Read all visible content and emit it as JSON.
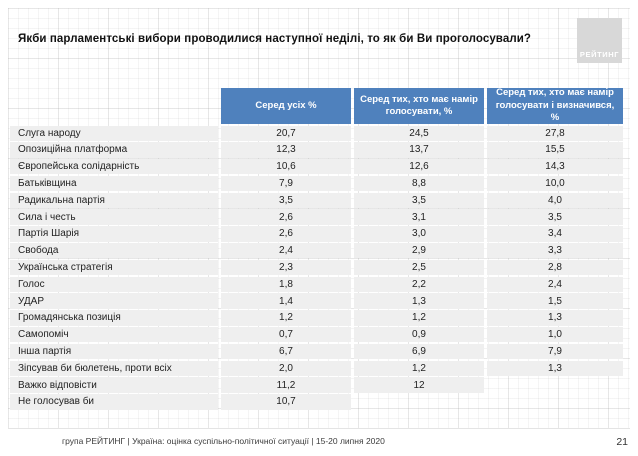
{
  "slide": {
    "logo_text": "РЕЙТИНГ",
    "footer": "група РЕЙТИНГ |  Україна: оцінка суспільно-політичної  ситуації  | 15-20 липня  2020",
    "page_number": "21"
  },
  "colors": {
    "header_blue": "#4f81bd",
    "row_gray": "#efefef",
    "logo_gray": "#d8d8d8"
  },
  "chart_data": {
    "type": "table",
    "title": "Якби парламентські вибори проводилися наступної неділі, то як би Ви проголосували?",
    "column_headers": [
      "Серед усіх %",
      "Серед тих, хто має намір голосувати, %",
      "Серед тих, хто має намір голосувати і визначився, %"
    ],
    "rows": [
      {
        "party": "Слуга народу",
        "among_all": "20,7",
        "among_intending": "24,5",
        "among_decided": "27,8"
      },
      {
        "party": "Опозиційна платформа",
        "among_all": "12,3",
        "among_intending": "13,7",
        "among_decided": "15,5"
      },
      {
        "party": "Європейська солідарність",
        "among_all": "10,6",
        "among_intending": "12,6",
        "among_decided": "14,3"
      },
      {
        "party": "Батьківщина",
        "among_all": "7,9",
        "among_intending": "8,8",
        "among_decided": "10,0"
      },
      {
        "party": "Радикальна партія",
        "among_all": "3,5",
        "among_intending": "3,5",
        "among_decided": "4,0"
      },
      {
        "party": "Сила і честь",
        "among_all": "2,6",
        "among_intending": "3,1",
        "among_decided": "3,5"
      },
      {
        "party": "Партія Шарія",
        "among_all": "2,6",
        "among_intending": "3,0",
        "among_decided": "3,4"
      },
      {
        "party": "Свобода",
        "among_all": "2,4",
        "among_intending": "2,9",
        "among_decided": "3,3"
      },
      {
        "party": "Українська стратегія",
        "among_all": "2,3",
        "among_intending": "2,5",
        "among_decided": "2,8"
      },
      {
        "party": "Голос",
        "among_all": "1,8",
        "among_intending": "2,2",
        "among_decided": "2,4"
      },
      {
        "party": "УДАР",
        "among_all": "1,4",
        "among_intending": "1,3",
        "among_decided": "1,5"
      },
      {
        "party": "Громадянська позиція",
        "among_all": "1,2",
        "among_intending": "1,2",
        "among_decided": "1,3"
      },
      {
        "party": "Самопоміч",
        "among_all": "0,7",
        "among_intending": "0,9",
        "among_decided": "1,0"
      },
      {
        "party": "Інша партія",
        "among_all": "6,7",
        "among_intending": "6,9",
        "among_decided": "7,9"
      },
      {
        "party": "Зіпсував би бюлетень, проти всіх",
        "among_all": "2,0",
        "among_intending": "1,2",
        "among_decided": "1,3"
      },
      {
        "party": "Важко відповісти",
        "among_all": "11,2",
        "among_intending": "12",
        "among_decided": null
      },
      {
        "party": "Не голосував би",
        "among_all": "10,7",
        "among_intending": null,
        "among_decided": null
      }
    ]
  }
}
